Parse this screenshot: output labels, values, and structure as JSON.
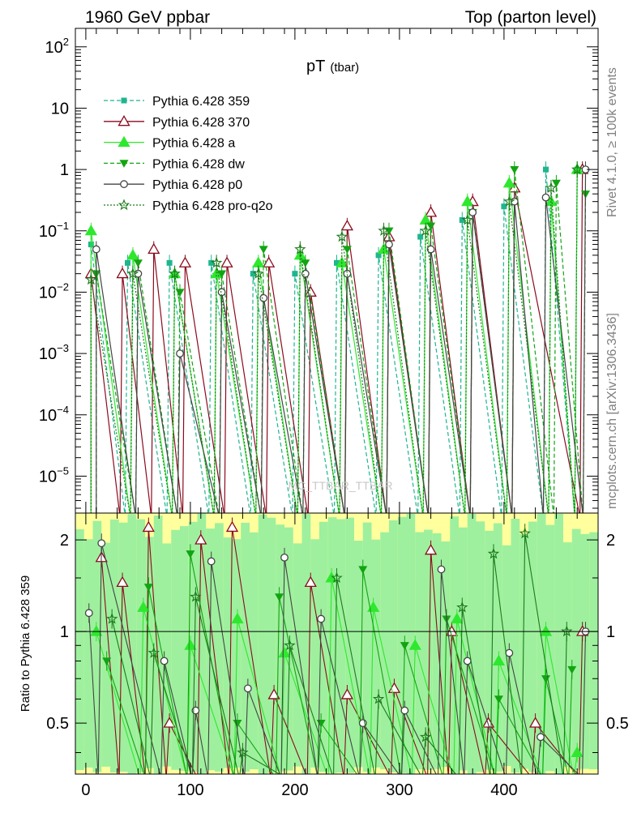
{
  "header": {
    "left": "1960 GeV ppbar",
    "right": "Top (parton level)"
  },
  "side_labels": {
    "rivet": "Rivet 4.1.0, ≥ 100k events",
    "mcplots": "mcplots.cern.ch [arXiv:1306.3436]"
  },
  "watermark": "MC_TTBAR_TTBAR",
  "chart_data": [
    {
      "type": "line",
      "panel": "main",
      "title": "pT",
      "title_sub": "(tbar)",
      "xlabel": "",
      "ylabel": "",
      "yscale": "log",
      "xlim": [
        -10,
        490
      ],
      "ylim": [
        2.5e-06,
        200
      ],
      "x_ticks": [
        0,
        100,
        200,
        300,
        400
      ],
      "y_ticks": [
        {
          "value": 100,
          "label": "10",
          "sup": "2"
        },
        {
          "value": 10,
          "label": "10",
          "sup": ""
        },
        {
          "value": 1,
          "label": "1",
          "sup": ""
        },
        {
          "value": 0.1,
          "label": "10",
          "sup": "−1"
        },
        {
          "value": 0.01,
          "label": "10",
          "sup": "−2"
        },
        {
          "value": 0.001,
          "label": "10",
          "sup": "−3"
        },
        {
          "value": 0.0001,
          "label": "10",
          "sup": "−4"
        },
        {
          "value": 1e-05,
          "label": "10",
          "sup": "−5"
        }
      ],
      "legend_position": "top-left",
      "series": [
        {
          "name": "Pythia 6.428 359",
          "color": "#1fb58f",
          "marker": "square",
          "dash": "dashed",
          "x": [
            5,
            40,
            80,
            120,
            160,
            200,
            240,
            280,
            320,
            360,
            400,
            440,
            470
          ],
          "values": [
            0.06,
            0.03,
            0.03,
            0.03,
            0.02,
            0.02,
            0.03,
            0.04,
            0.08,
            0.15,
            0.25,
            1.0,
            1.0
          ]
        },
        {
          "name": "Pythia 6.428 370",
          "color": "#8b0a1e",
          "marker": "open-triangle",
          "dash": "solid",
          "x": [
            5,
            35,
            65,
            95,
            135,
            175,
            215,
            250,
            290,
            330,
            370,
            410,
            475
          ],
          "values": [
            0.02,
            0.02,
            0.05,
            0.03,
            0.03,
            0.03,
            0.01,
            0.12,
            0.08,
            0.2,
            0.3,
            0.5,
            1.0
          ]
        },
        {
          "name": "Pythia 6.428 a",
          "color": "#2ee82e",
          "marker": "triangle",
          "dash": "solid",
          "x": [
            5,
            45,
            85,
            125,
            165,
            205,
            245,
            285,
            325,
            365,
            405,
            445,
            470
          ],
          "values": [
            0.1,
            0.04,
            0.02,
            0.02,
            0.03,
            0.04,
            0.03,
            0.05,
            0.15,
            0.3,
            0.6,
            0.3,
            1.0
          ]
        },
        {
          "name": "Pythia 6.428 dw",
          "color": "#12a412",
          "marker": "down-triangle",
          "dash": "dashed",
          "x": [
            10,
            50,
            90,
            130,
            170,
            210,
            250,
            290,
            330,
            370,
            410,
            450,
            478
          ],
          "values": [
            0.02,
            0.03,
            0.01,
            0.02,
            0.05,
            0.03,
            0.05,
            0.1,
            0.12,
            0.2,
            1.0,
            0.6,
            0.4
          ]
        },
        {
          "name": "Pythia 6.428 p0",
          "color": "#444444",
          "marker": "open-circle",
          "dash": "solid",
          "x": [
            10,
            50,
            90,
            130,
            170,
            210,
            250,
            290,
            330,
            370,
            410,
            440,
            478
          ],
          "values": [
            0.05,
            0.02,
            0.001,
            0.01,
            0.008,
            0.02,
            0.02,
            0.06,
            0.05,
            0.2,
            0.3,
            0.35,
            1.0
          ]
        },
        {
          "name": "Pythia 6.428 pro-q2o",
          "color": "#1d7a1d",
          "marker": "star",
          "dash": "dotted",
          "x": [
            5,
            45,
            85,
            125,
            165,
            205,
            245,
            285,
            325,
            365,
            405,
            445,
            470
          ],
          "values": [
            0.016,
            0.02,
            0.02,
            0.03,
            0.02,
            0.05,
            0.08,
            0.1,
            0.1,
            0.15,
            0.3,
            0.5,
            1.0
          ]
        }
      ]
    },
    {
      "type": "line",
      "panel": "ratio",
      "ylabel": "Ratio to Pythia 6.428 359",
      "yscale": "log",
      "xlim": [
        -10,
        490
      ],
      "ylim": [
        0.34,
        2.45
      ],
      "x_ticks": [
        0,
        100,
        200,
        300,
        400
      ],
      "y_ticks": [
        {
          "value": 2,
          "label": "2"
        },
        {
          "value": 1,
          "label": "1"
        },
        {
          "value": 0.5,
          "label": "0.5"
        }
      ],
      "series": [
        {
          "name": "Pythia 6.428 370",
          "color": "#8b0a1e",
          "marker": "open-triangle",
          "x": [
            15,
            35,
            60,
            80,
            110,
            140,
            180,
            215,
            250,
            295,
            330,
            350,
            385,
            430,
            475
          ],
          "values": [
            1.75,
            1.45,
            2.2,
            0.5,
            2.0,
            2.2,
            0.62,
            1.45,
            0.62,
            0.65,
            1.85,
            1.0,
            0.5,
            0.5,
            1.0
          ]
        },
        {
          "name": "Pythia 6.428 a",
          "color": "#2ee82e",
          "marker": "triangle",
          "x": [
            10,
            55,
            100,
            145,
            190,
            235,
            275,
            315,
            355,
            395,
            440,
            470
          ],
          "values": [
            1.0,
            1.2,
            0.9,
            1.1,
            0.85,
            1.5,
            1.2,
            0.9,
            1.1,
            0.8,
            1.0,
            0.4
          ]
        },
        {
          "name": "Pythia 6.428 dw",
          "color": "#12a412",
          "marker": "down-triangle",
          "x": [
            20,
            60,
            100,
            145,
            185,
            225,
            265,
            305,
            345,
            395,
            440,
            465
          ],
          "values": [
            0.8,
            1.4,
            1.8,
            0.5,
            1.3,
            0.5,
            1.6,
            0.9,
            1.1,
            0.6,
            0.7,
            0.75
          ]
        },
        {
          "name": "Pythia 6.428 p0",
          "color": "#444444",
          "marker": "open-circle",
          "x": [
            3,
            15,
            75,
            105,
            120,
            155,
            190,
            225,
            265,
            305,
            340,
            365,
            405,
            435,
            478
          ],
          "values": [
            1.15,
            1.95,
            0.8,
            0.55,
            1.7,
            0.65,
            1.75,
            1.1,
            0.5,
            0.55,
            1.6,
            0.8,
            0.85,
            0.45,
            1.0
          ]
        },
        {
          "name": "Pythia 6.428 pro-q2o",
          "color": "#1d7a1d",
          "marker": "star",
          "x": [
            25,
            65,
            105,
            150,
            195,
            240,
            280,
            325,
            360,
            390,
            420,
            460
          ],
          "values": [
            1.1,
            0.85,
            1.3,
            0.4,
            0.9,
            1.5,
            0.6,
            0.45,
            1.2,
            1.8,
            2.1,
            1.0
          ]
        }
      ]
    }
  ]
}
